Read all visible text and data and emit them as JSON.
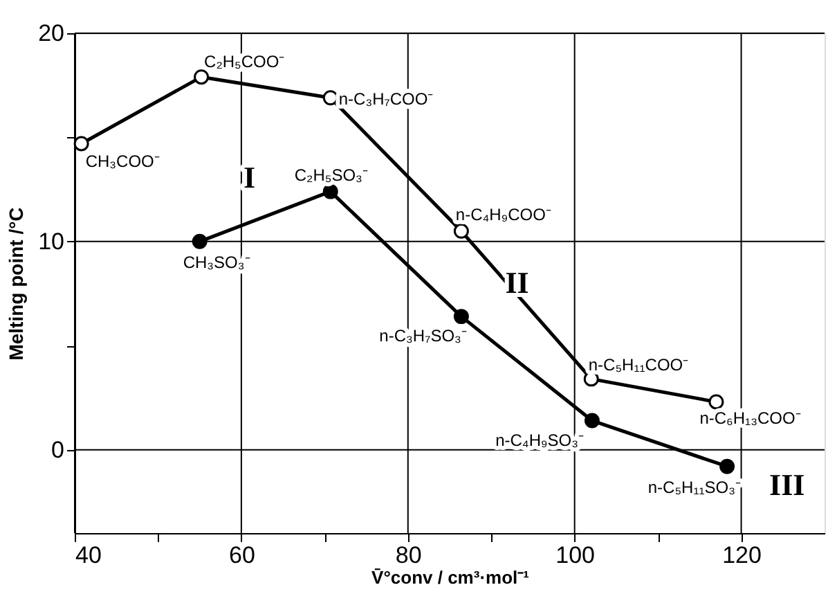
{
  "chart_data": {
    "type": "line",
    "xlabel": "V̄°conv / cm³·mol⁻¹",
    "ylabel": "Melting point /°C",
    "series": [
      {
        "color": "#000000",
        "marker": "circle",
        "x": [
          40.8,
          55.2,
          70.7,
          86.4,
          102.0,
          117.0
        ],
        "values": [
          14.7,
          17.9,
          16.9,
          10.5,
          3.4,
          2.3
        ]
      },
      {
        "color": "#000000",
        "marker": "circle",
        "x": [
          55.0,
          70.7,
          86.4,
          102.1,
          118.3
        ],
        "values": [
          10.0,
          12.4,
          6.4,
          1.4,
          -0.8
        ]
      }
    ],
    "xlim": [
      40,
      130
    ],
    "ylim": [
      -4,
      20
    ],
    "xticks": [
      40,
      {
        "value": 50,
        "label": null
      },
      60,
      {
        "value": 70,
        "label": null
      },
      80,
      {
        "value": 90,
        "label": null
      },
      100,
      {
        "value": 110,
        "label": null
      },
      120
    ],
    "yticks": [
      0,
      {
        "value": 5,
        "label": null
      },
      10,
      {
        "value": 15,
        "label": null
      },
      20
    ],
    "grid": true,
    "line_style": "solid",
    "annotations": [
      {
        "text": "CH₃COO⁻",
        "x": 40.8,
        "y": 14.7
      },
      {
        "text": "C₂H₅COO⁻",
        "x": 55.2,
        "y": 17.9
      },
      {
        "text": "n-C₃H₇COO⁻",
        "x": 70.7,
        "y": 16.9
      },
      {
        "text": "n-C₄H₉COO⁻",
        "x": 86.4,
        "y": 10.5
      },
      {
        "text": "n-C₅H₁₁COO⁻",
        "x": 102.0,
        "y": 3.4
      },
      {
        "text": "n-C₆H₁₃COO⁻",
        "x": 117.0,
        "y": 2.3
      },
      {
        "text": "CH₃SO₃⁻",
        "x": 55.0,
        "y": 10.0
      },
      {
        "text": "C₂H₅SO₃⁻",
        "x": 70.7,
        "y": 12.4
      },
      {
        "text": "n-C₃H₇SO₃⁻",
        "x": 86.4,
        "y": 6.4
      },
      {
        "text": "n-C₄H₉SO₃⁻",
        "x": 102.1,
        "y": 1.4
      },
      {
        "text": "n-C₅H₁₁SO₃⁻",
        "x": 118.3,
        "y": -0.8
      },
      "I",
      "II",
      "III"
    ]
  }
}
